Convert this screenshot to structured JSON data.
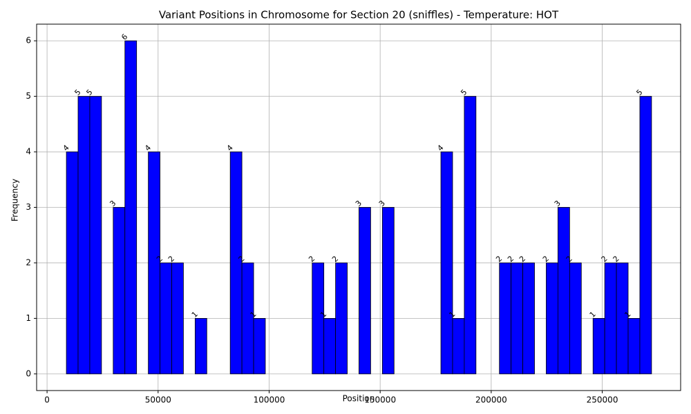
{
  "chart_data": {
    "type": "histogram",
    "title": "Variant Positions in Chromosome for Section 20 (sniffles) - Temperature: HOT",
    "x_label": "Position",
    "y_label": "Frequency",
    "bins": [
      8700,
      13970,
      19240,
      24510,
      29780,
      35050,
      40320,
      45590,
      50860,
      56130,
      61400,
      66670,
      71940,
      77210,
      82480,
      87750,
      93020,
      98290,
      103560,
      108830,
      114100,
      119370,
      124640,
      129910,
      135180,
      140450,
      145720,
      150990,
      156260,
      161530,
      166800,
      172070,
      177340,
      182610,
      187880,
      193150,
      198420,
      203690,
      208960,
      214230,
      219500,
      224770,
      230040,
      235310,
      240580,
      245850,
      251120,
      256390,
      261660,
      266930,
      272200
    ],
    "counts": [
      4,
      5,
      5,
      0,
      3,
      6,
      0,
      4,
      2,
      2,
      0,
      1,
      0,
      0,
      4,
      2,
      1,
      0,
      0,
      0,
      0,
      2,
      1,
      2,
      0,
      3,
      0,
      3,
      0,
      0,
      0,
      0,
      4,
      1,
      5,
      0,
      0,
      2,
      2,
      2,
      0,
      2,
      3,
      2,
      0,
      1,
      2,
      2,
      1,
      5
    ],
    "color": "#0000ff",
    "xlim": [
      -4700,
      285300
    ],
    "xticks": [
      0,
      50000,
      100000,
      150000,
      200000,
      250000
    ],
    "ylim": [
      -0.3,
      6.3
    ],
    "yticks": [
      0,
      1,
      2,
      3,
      4,
      5,
      6
    ],
    "grid": true
  }
}
